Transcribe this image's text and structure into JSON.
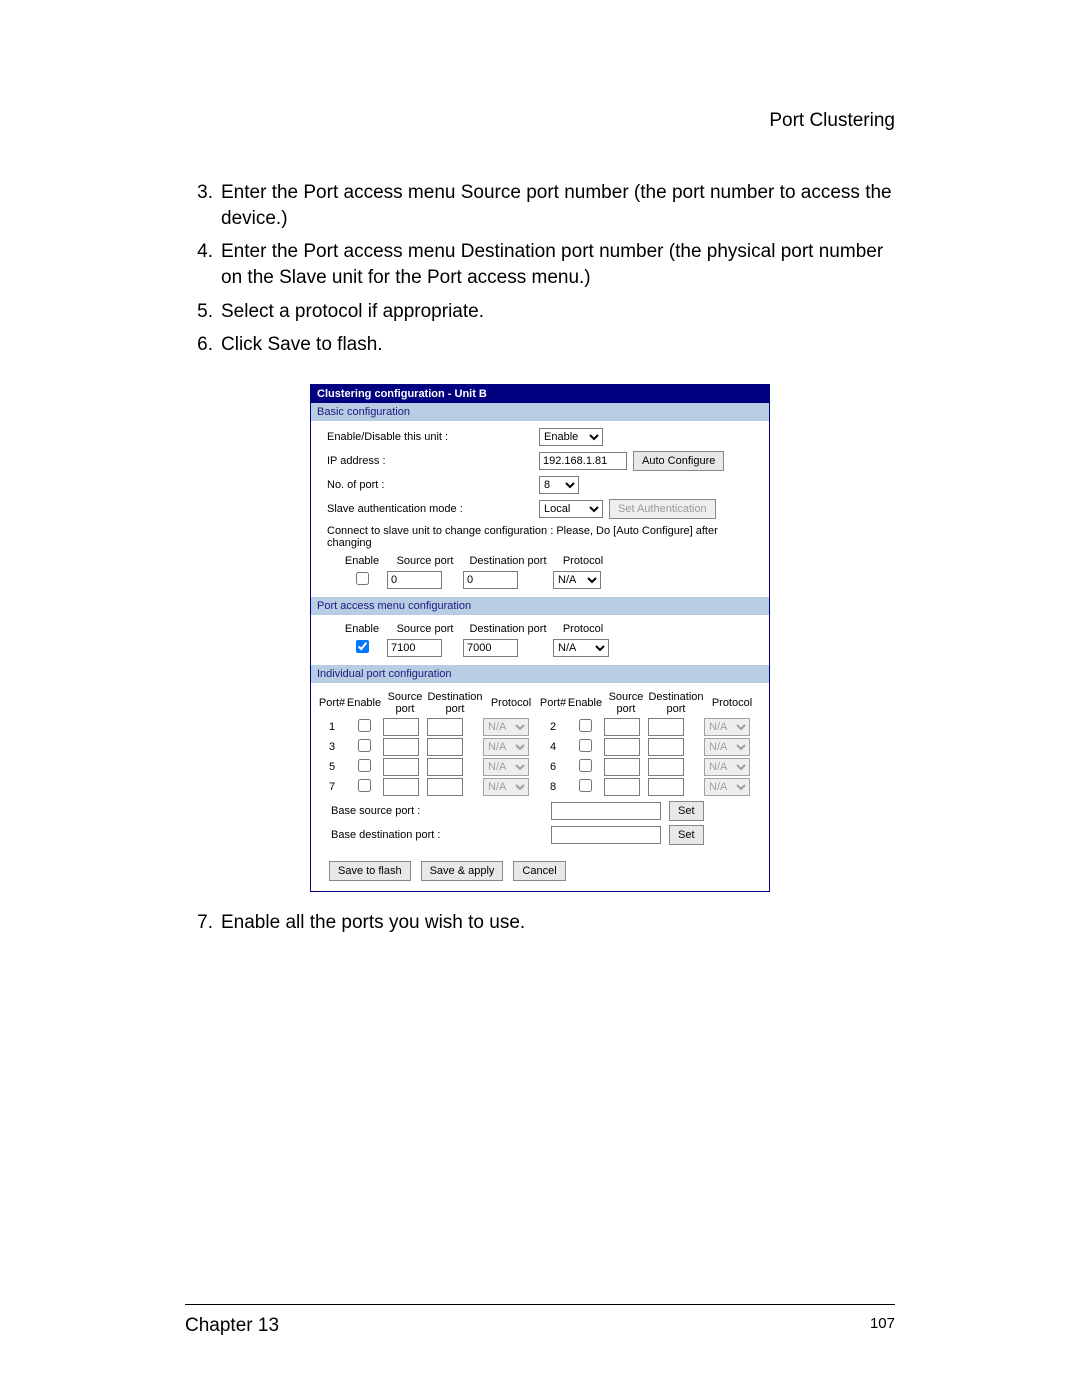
{
  "page_header": "Port Clustering",
  "steps": {
    "s3": {
      "num": "3.",
      "text": "Enter the Port access menu Source port number (the port number to access the device.)"
    },
    "s4": {
      "num": "4.",
      "text": "Enter the Port access menu Destination port number (the physical port number on the Slave unit for the Port access menu.)"
    },
    "s5": {
      "num": "5.",
      "text": "Select a protocol if appropriate."
    },
    "s6": {
      "num": "6.",
      "text_prefix": "Click ",
      "text_button": "Save to flash",
      "text_suffix": "."
    },
    "s7": {
      "num": "7.",
      "text": "Enable all the ports you wish to use."
    }
  },
  "panel": {
    "title": "Clustering configuration - Unit B",
    "basic": {
      "header": "Basic configuration",
      "enable_label": "Enable/Disable this unit :",
      "enable_value": "Enable",
      "ip_label": "IP address :",
      "ip_value": "192.168.1.81",
      "auto_configure_btn": "Auto Configure",
      "noport_label": "No. of port :",
      "noport_value": "8",
      "auth_label": "Slave authentication mode :",
      "auth_value": "Local",
      "set_auth_btn": "Set Authentication",
      "note": "Connect to slave unit to change configuration : Please, Do [Auto Configure] after changing",
      "cols": {
        "enable": "Enable",
        "sport": "Source port",
        "dport": "Destination port",
        "proto": "Protocol"
      },
      "row": {
        "sport": "0",
        "dport": "0",
        "proto": "N/A"
      }
    },
    "pam": {
      "header": "Port access menu configuration",
      "cols": {
        "enable": "Enable",
        "sport": "Source port",
        "dport": "Destination port",
        "proto": "Protocol"
      },
      "row": {
        "sport": "7100",
        "dport": "7000",
        "proto": "N/A"
      }
    },
    "indiv": {
      "header": "Individual port configuration",
      "cols": {
        "portnum": "Port#",
        "enable": "Enable",
        "sport_l1": "Source",
        "sport_l2": "port",
        "dport_l1": "Destination",
        "dport_l2": "port",
        "proto": "Protocol"
      },
      "rows_left": [
        {
          "n": "1"
        },
        {
          "n": "3"
        },
        {
          "n": "5"
        },
        {
          "n": "7"
        }
      ],
      "rows_right": [
        {
          "n": "2"
        },
        {
          "n": "4"
        },
        {
          "n": "6"
        },
        {
          "n": "8"
        }
      ],
      "proto_value": "N/A",
      "base_src_label": "Base source port :",
      "base_dst_label": "Base destination port :",
      "set_btn": "Set"
    },
    "buttons": {
      "save_flash": "Save to flash",
      "save_apply": "Save & apply",
      "cancel": "Cancel"
    }
  },
  "footer": {
    "chapter": "Chapter 13",
    "page": "107"
  }
}
